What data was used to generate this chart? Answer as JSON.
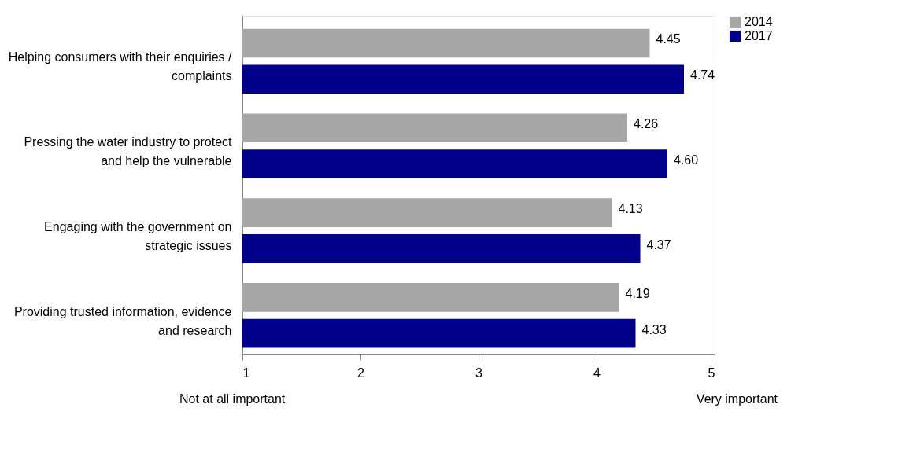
{
  "chart_data": {
    "type": "bar",
    "orientation": "horizontal",
    "categories": [
      "Helping consumers with their enquiries / complaints",
      "Pressing the water industry to protect and help the vulnerable",
      "Engaging with the government on strategic issues",
      "Providing trusted information, evidence and research"
    ],
    "series": [
      {
        "name": "2014",
        "color": "#a6a6a6",
        "values": [
          4.45,
          4.26,
          4.13,
          4.19
        ],
        "value_labels": [
          "4.45",
          "4.26",
          "4.13",
          "4.19"
        ]
      },
      {
        "name": "2017",
        "color": "#00008b",
        "values": [
          4.74,
          4.6,
          4.37,
          4.33
        ],
        "value_labels": [
          "4.74",
          "4.60",
          "4.37",
          "4.33"
        ]
      }
    ],
    "xlim": [
      1,
      5
    ],
    "xticks": [
      1,
      2,
      3,
      4,
      5
    ],
    "grid": false,
    "legend": "right",
    "annotations": [
      "Not at all important",
      "Very important"
    ]
  }
}
